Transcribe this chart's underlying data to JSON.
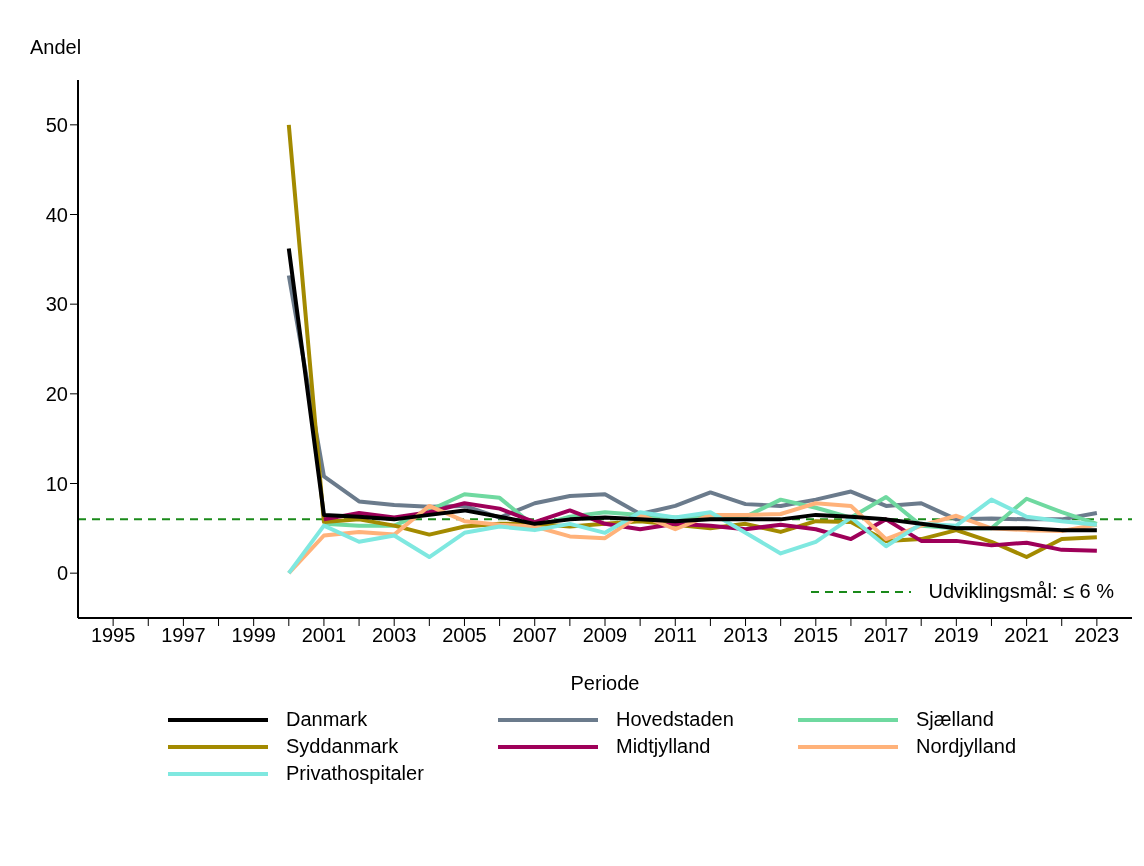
{
  "chart_data": {
    "type": "line",
    "xlabel": "Periode",
    "ylabel": "Andel",
    "x": [
      2000,
      2001,
      2002,
      2003,
      2004,
      2005,
      2006,
      2007,
      2008,
      2009,
      2010,
      2011,
      2012,
      2013,
      2014,
      2015,
      2016,
      2017,
      2018,
      2019,
      2020,
      2021,
      2022,
      2023
    ],
    "series": [
      {
        "name": "Danmark",
        "color": "#000000",
        "values": [
          36.2,
          6.5,
          6.3,
          6.0,
          6.5,
          7.0,
          6.3,
          5.5,
          6.0,
          6.2,
          6.0,
          5.8,
          6.0,
          6.0,
          6.0,
          6.5,
          6.3,
          6.0,
          5.5,
          5.0,
          5.0,
          5.0,
          4.8,
          4.8
        ]
      },
      {
        "name": "Hovedstaden",
        "color": "#6b7b8c",
        "values": [
          33.2,
          10.8,
          8.0,
          7.6,
          7.4,
          7.5,
          6.2,
          7.8,
          8.6,
          8.8,
          6.6,
          7.5,
          9.0,
          7.7,
          7.5,
          8.2,
          9.1,
          7.5,
          7.8,
          6.0,
          6.1,
          6.0,
          6.0,
          6.7
        ]
      },
      {
        "name": "Sjælland",
        "color": "#6fd9a0",
        "values": [
          null,
          5.5,
          5.3,
          5.3,
          7.0,
          8.8,
          8.4,
          5.2,
          6.3,
          6.8,
          6.5,
          6.2,
          6.3,
          6.3,
          8.2,
          7.3,
          6.2,
          8.5,
          5.3,
          5.0,
          5.0,
          8.3,
          6.8,
          5.5
        ]
      },
      {
        "name": "Syddanmark",
        "color": "#a38a00",
        "values": [
          50.0,
          5.7,
          6.0,
          5.3,
          4.3,
          5.2,
          5.5,
          5.5,
          5.2,
          5.5,
          5.8,
          5.4,
          5.0,
          5.5,
          4.6,
          5.8,
          5.7,
          3.6,
          3.8,
          4.8,
          3.5,
          1.8,
          3.8,
          4.0
        ]
      },
      {
        "name": "Midtjylland",
        "color": "#9e0059",
        "values": [
          null,
          6.0,
          6.7,
          6.2,
          6.8,
          7.8,
          7.2,
          5.7,
          7.0,
          5.5,
          4.9,
          5.5,
          5.3,
          4.9,
          5.4,
          4.9,
          3.8,
          6.0,
          3.6,
          3.6,
          3.1,
          3.4,
          2.6,
          2.5
        ]
      },
      {
        "name": "Nordjylland",
        "color": "#ffb27a",
        "values": [
          0.0,
          4.2,
          4.6,
          4.3,
          7.5,
          5.8,
          5.4,
          5.2,
          4.1,
          3.9,
          6.5,
          4.9,
          6.5,
          6.5,
          6.6,
          7.8,
          7.5,
          3.8,
          5.3,
          6.4,
          5.0,
          4.8,
          4.7,
          5.4
        ]
      },
      {
        "name": "Privathospitaler",
        "color": "#7fe8e0",
        "values": [
          0.0,
          5.3,
          3.5,
          4.2,
          1.8,
          4.5,
          5.2,
          4.8,
          5.5,
          4.5,
          6.8,
          6.2,
          6.8,
          4.5,
          2.2,
          3.5,
          6.2,
          3.0,
          5.5,
          5.3,
          8.2,
          6.3,
          5.8,
          5.4
        ]
      }
    ],
    "xlim": [
      1994,
      2024
    ],
    "xticks": [
      1995,
      {
        "value": 1996,
        "label": null
      },
      1997,
      {
        "value": 1998,
        "label": null
      },
      1999,
      {
        "value": 2000,
        "label": null
      },
      2001,
      {
        "value": 2002,
        "label": null
      },
      2003,
      {
        "value": 2004,
        "label": null
      },
      2005,
      {
        "value": 2006,
        "label": null
      },
      2007,
      {
        "value": 2008,
        "label": null
      },
      2009,
      {
        "value": 2010,
        "label": null
      },
      2011,
      {
        "value": 2012,
        "label": null
      },
      2013,
      {
        "value": 2014,
        "label": null
      },
      2015,
      {
        "value": 2016,
        "label": null
      },
      2017,
      {
        "value": 2018,
        "label": null
      },
      2019,
      {
        "value": 2020,
        "label": null
      },
      2021,
      {
        "value": 2022,
        "label": null
      },
      2023
    ],
    "ylim": [
      -5,
      55
    ],
    "yticks": [
      0,
      10,
      20,
      30,
      40,
      50
    ],
    "ref_lines": [
      {
        "axis": "y",
        "value": 6,
        "label": "Udviklingsmål: ≤ 6 %",
        "color": "#1a8a1a",
        "line_style": "dashed"
      }
    ],
    "grid": false,
    "legend": "bottom",
    "marker": "none",
    "line_style": "solid"
  }
}
